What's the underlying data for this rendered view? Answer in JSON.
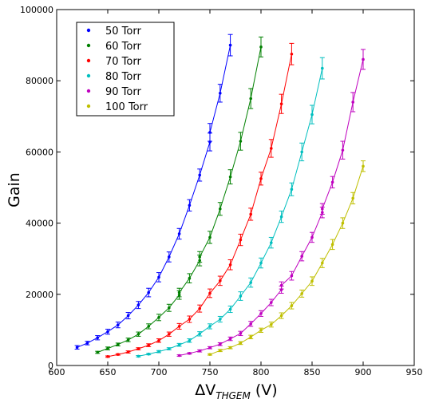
{
  "chart_data": {
    "type": "scatter",
    "xlabel_main": "ΔV",
    "xlabel_sub": "THGEM",
    "xlabel_unit": " (V)",
    "ylabel": "Gain",
    "xlim": [
      600,
      950
    ],
    "ylim": [
      0,
      100000
    ],
    "x_ticks": [
      "600",
      "650",
      "700",
      "750",
      "800",
      "850",
      "900",
      "950"
    ],
    "y_ticks": [
      "0",
      "20000",
      "40000",
      "60000",
      "80000",
      "100000"
    ],
    "grid": false,
    "legend_position": "top-left",
    "errorbars": true,
    "series": [
      {
        "name": "50 Torr",
        "color": "#0000ff",
        "x": [
          620,
          630,
          640,
          650,
          660,
          670,
          680,
          690,
          700,
          710,
          720,
          730,
          740,
          750,
          750,
          760,
          770
        ],
        "y": [
          5100,
          6300,
          7800,
          9500,
          11400,
          14000,
          17000,
          20500,
          24800,
          30500,
          37000,
          45000,
          53500,
          62800,
          65500,
          76500,
          90000
        ],
        "err": [
          500,
          500,
          600,
          700,
          800,
          900,
          1000,
          1200,
          1300,
          1400,
          1500,
          1600,
          1700,
          2500,
          2500,
          2500,
          3000
        ]
      },
      {
        "name": "60 Torr",
        "color": "#008000",
        "x": [
          640,
          650,
          660,
          670,
          680,
          690,
          700,
          710,
          720,
          720,
          730,
          740,
          740,
          750,
          760,
          770,
          780,
          790,
          800
        ],
        "y": [
          3700,
          4800,
          5900,
          7200,
          8800,
          11000,
          13500,
          16200,
          19800,
          20500,
          24500,
          29500,
          30500,
          36000,
          44000,
          53000,
          63000,
          75000,
          89500
        ],
        "err": [
          300,
          400,
          400,
          500,
          600,
          700,
          900,
          1000,
          1200,
          1200,
          1300,
          1500,
          1500,
          1700,
          1800,
          2000,
          2500,
          2800,
          2800
        ]
      },
      {
        "name": "70 Torr",
        "color": "#ff0000",
        "x": [
          650,
          660,
          670,
          680,
          690,
          700,
          710,
          720,
          730,
          740,
          750,
          760,
          770,
          780,
          790,
          800,
          810,
          820,
          830
        ],
        "y": [
          2500,
          3100,
          3800,
          4700,
          5700,
          7000,
          8800,
          11000,
          13000,
          16000,
          20300,
          23800,
          28300,
          35300,
          42500,
          52500,
          61000,
          73500,
          87500
        ],
        "err": [
          200,
          200,
          300,
          300,
          400,
          500,
          600,
          800,
          900,
          1000,
          1200,
          1300,
          1400,
          1600,
          1700,
          1800,
          2500,
          2700,
          3000
        ]
      },
      {
        "name": "80 Torr",
        "color": "#00bfbf",
        "x": [
          680,
          690,
          700,
          710,
          720,
          730,
          740,
          750,
          760,
          770,
          780,
          790,
          800,
          810,
          820,
          830,
          840,
          850,
          860
        ],
        "y": [
          2600,
          3200,
          3900,
          4700,
          5800,
          7000,
          8900,
          11000,
          13000,
          15800,
          19500,
          23300,
          28800,
          34500,
          41800,
          49500,
          60000,
          70500,
          83500
        ],
        "err": [
          200,
          200,
          300,
          300,
          400,
          500,
          600,
          700,
          800,
          900,
          1200,
          1300,
          1400,
          1500,
          1600,
          1800,
          2500,
          2600,
          3000
        ]
      },
      {
        "name": "90 Torr",
        "color": "#bf00bf",
        "x": [
          720,
          730,
          740,
          750,
          760,
          770,
          780,
          790,
          800,
          810,
          820,
          820,
          830,
          840,
          850,
          860,
          860,
          870,
          880,
          890,
          900
        ],
        "y": [
          2800,
          3400,
          4100,
          5000,
          6000,
          7500,
          9000,
          11700,
          14600,
          17700,
          21300,
          22500,
          25200,
          30700,
          36000,
          43000,
          44000,
          51500,
          60500,
          74000,
          86000
        ],
        "err": [
          200,
          200,
          300,
          300,
          400,
          500,
          600,
          700,
          800,
          900,
          1000,
          1000,
          1200,
          1300,
          1400,
          1500,
          1500,
          1600,
          2500,
          2700,
          2800
        ]
      },
      {
        "name": "100 Torr",
        "color": "#bfbf00",
        "x": [
          750,
          760,
          770,
          780,
          790,
          800,
          810,
          820,
          830,
          840,
          850,
          860,
          870,
          880,
          890,
          900
        ],
        "y": [
          3100,
          4200,
          5000,
          6300,
          8000,
          9900,
          11500,
          14000,
          16800,
          20200,
          23700,
          28800,
          34000,
          40000,
          47000,
          56000
        ],
        "err": [
          200,
          300,
          300,
          400,
          500,
          600,
          700,
          800,
          900,
          1000,
          1200,
          1300,
          1400,
          1500,
          1600,
          1500
        ]
      }
    ]
  }
}
